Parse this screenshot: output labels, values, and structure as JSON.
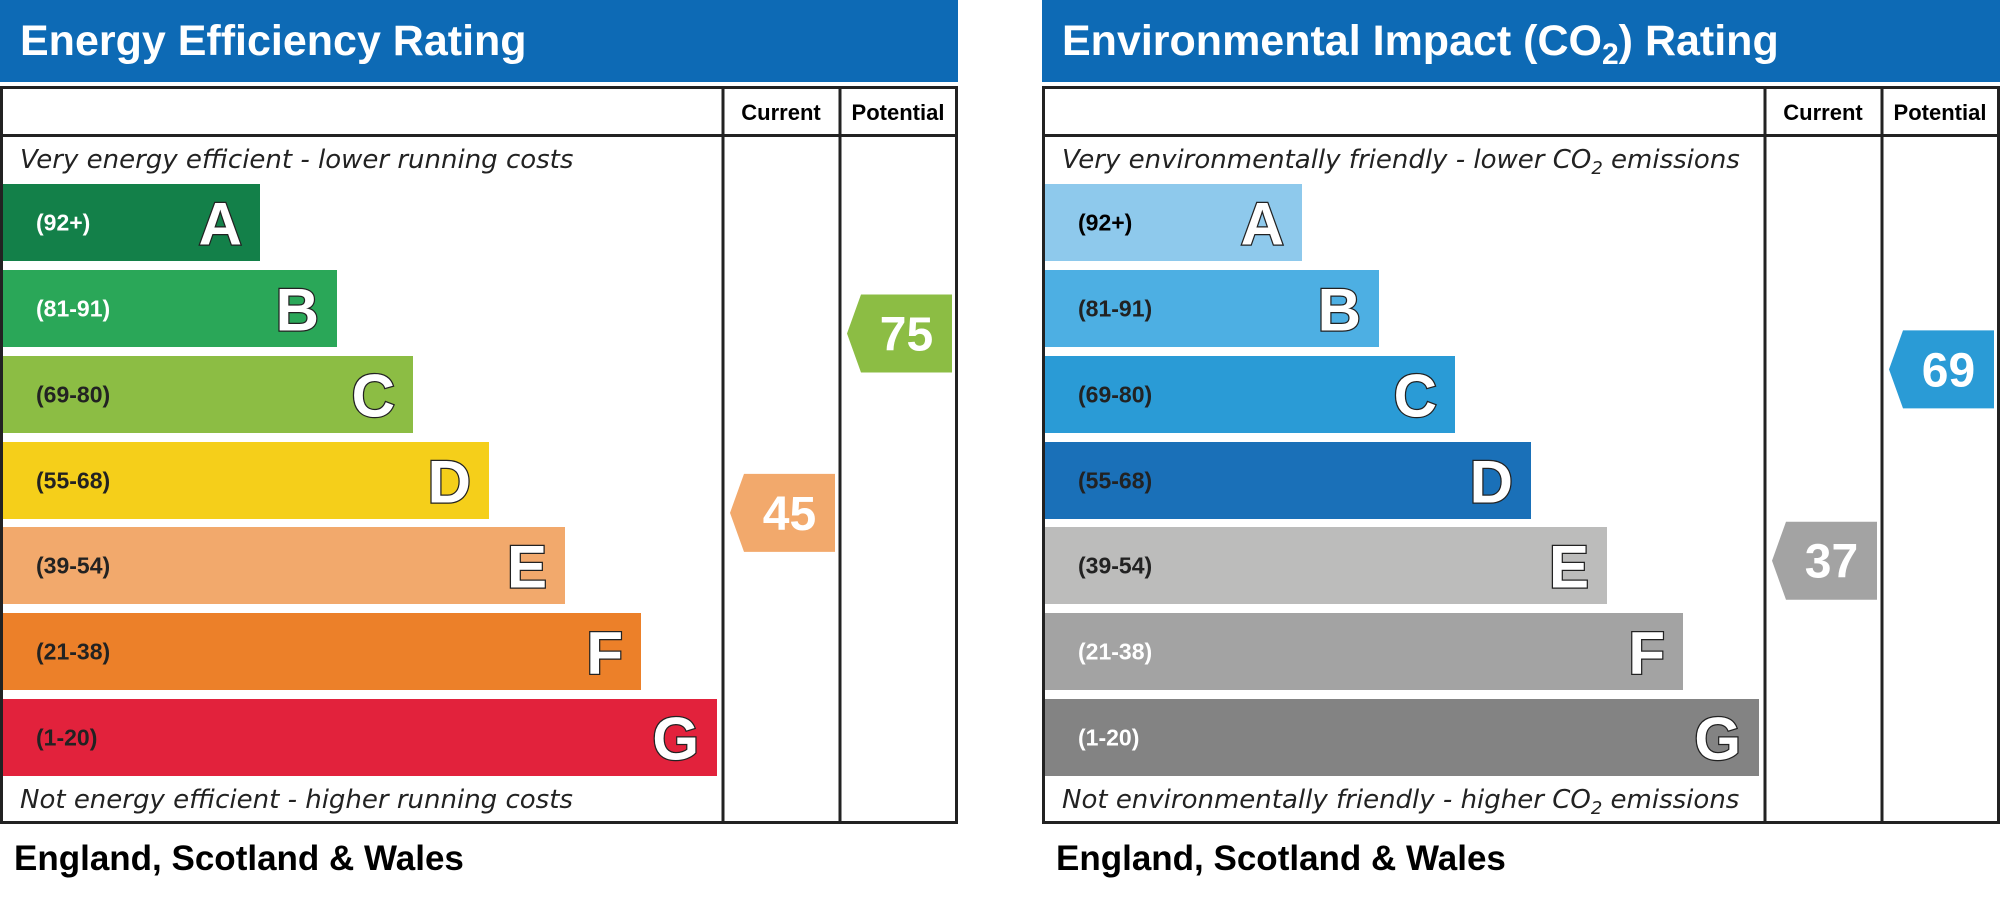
{
  "chart_data": [
    {
      "type": "bar",
      "id": "eer",
      "title": "Energy Efficiency Rating",
      "title_sub": "",
      "title_after": "",
      "header_current": "Current",
      "header_potential": "Potential",
      "top_caption": "Very energy efficient - lower running costs",
      "bottom_caption": "Not energy efficient - higher running costs",
      "footer": "England, Scotland & Wales",
      "current": 45,
      "current_band": "E",
      "potential": 75,
      "potential_band": "C",
      "bands": [
        {
          "letter": "A",
          "range": "(92+)",
          "color": "#138049",
          "text_color": "#ffffff"
        },
        {
          "letter": "B",
          "range": "(81-91)",
          "color": "#2aa758",
          "text_color": "#ffffff"
        },
        {
          "letter": "C",
          "range": "(69-80)",
          "color": "#8cbd44",
          "text_color": "#222222"
        },
        {
          "letter": "D",
          "range": "(55-68)",
          "color": "#f5cf1a",
          "text_color": "#222222"
        },
        {
          "letter": "E",
          "range": "(39-54)",
          "color": "#f2a96c",
          "text_color": "#222222"
        },
        {
          "letter": "F",
          "range": "(21-38)",
          "color": "#ec8029",
          "text_color": "#222222"
        },
        {
          "letter": "G",
          "range": "(1-20)",
          "color": "#e2223c",
          "text_color": "#222222"
        }
      ]
    },
    {
      "type": "bar",
      "id": "eir",
      "title": "Environmental Impact (CO",
      "title_sub": "2",
      "title_after": ") Rating",
      "header_current": "Current",
      "header_potential": "Potential",
      "top_caption": "Very environmentally friendly - lower CO",
      "top_caption_sub": "2",
      "top_caption_after": " emissions",
      "bottom_caption": "Not environmentally friendly - higher CO",
      "bottom_caption_sub": "2",
      "bottom_caption_after": " emissions",
      "footer": "England, Scotland & Wales",
      "current": 37,
      "current_band": "F",
      "potential": 69,
      "potential_band": "C",
      "bands": [
        {
          "letter": "A",
          "range": "(92+)",
          "color": "#8ec9ec",
          "text_color": "#000000"
        },
        {
          "letter": "B",
          "range": "(81-91)",
          "color": "#4dafe3",
          "text_color": "#222222"
        },
        {
          "letter": "C",
          "range": "(69-80)",
          "color": "#2a9bd6",
          "text_color": "#222222"
        },
        {
          "letter": "D",
          "range": "(55-68)",
          "color": "#1a70b8",
          "text_color": "#222222"
        },
        {
          "letter": "E",
          "range": "(39-54)",
          "color": "#bcbcbb",
          "text_color": "#222222"
        },
        {
          "letter": "F",
          "range": "(21-38)",
          "color": "#a3a3a3",
          "text_color": "#ffffff"
        },
        {
          "letter": "G",
          "range": "(1-20)",
          "color": "#838383",
          "text_color": "#ffffff"
        }
      ]
    }
  ],
  "colors": {
    "title_bar": "#0d6ab5",
    "border": "#222222"
  }
}
